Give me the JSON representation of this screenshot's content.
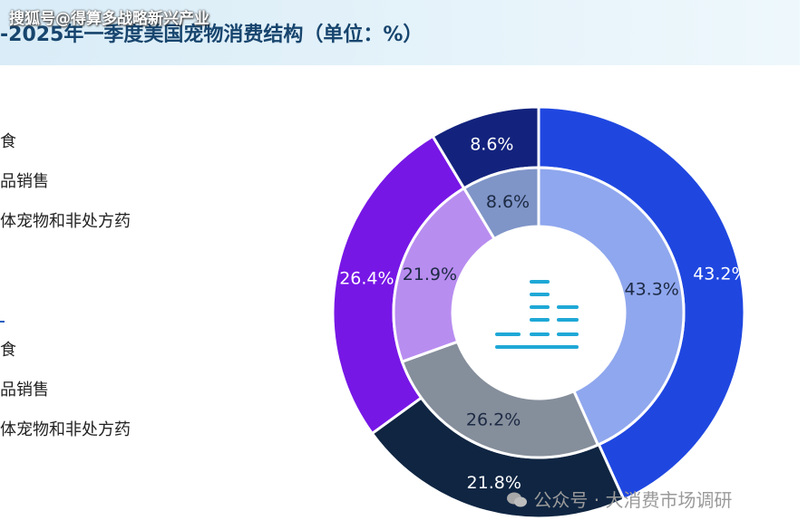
{
  "header": {
    "title": "-2025年一季度美国宠物消费结构（单位：%）",
    "watermark": "搜狐号@得算多战略新兴产业"
  },
  "legend": {
    "group1": [
      "食",
      "品销售",
      "体宠物和非处方药"
    ],
    "group2": [
      "食",
      "品销售",
      "体宠物和非处方药"
    ]
  },
  "footer": {
    "watermark_prefix": "公众号 ·",
    "watermark_name": "大消费市场调研"
  },
  "colors": {
    "outer": [
      "#1f47e0",
      "#0f2542",
      "#7717e6",
      "#13237d"
    ],
    "inner": [
      "#8fa7ee",
      "#858e9b",
      "#b88df0",
      "#7f95c8"
    ],
    "center_icon": "#1fa8d6"
  },
  "chart_data": {
    "type": "pie",
    "series": [
      {
        "name": "",
        "ring": "outer",
        "values": [
          43.2,
          21.8,
          26.4,
          8.6
        ],
        "labels": [
          "43.2%",
          "21.8%",
          "26.4%",
          "8.6%"
        ]
      },
      {
        "name": "",
        "ring": "inner",
        "values": [
          43.3,
          26.2,
          21.9,
          8.6
        ],
        "labels": [
          "43.3%",
          "26.2%",
          "21.9%",
          "8.6%"
        ]
      }
    ]
  }
}
